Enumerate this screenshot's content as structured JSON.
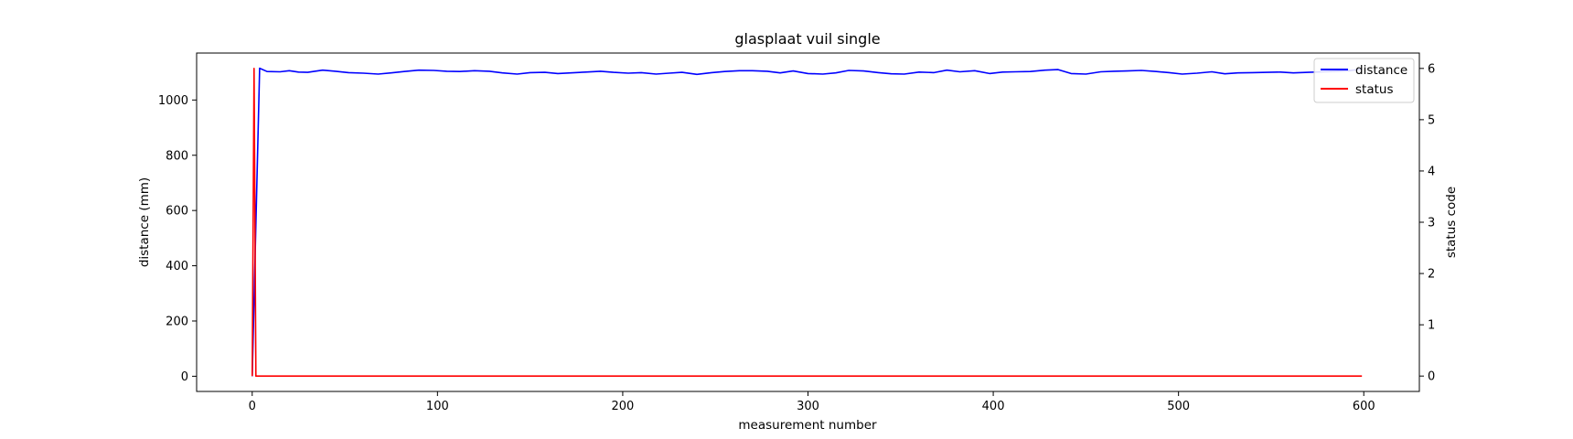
{
  "chart_data": {
    "type": "line",
    "title": "glasplaat vuil single",
    "xlabel": "measurement number",
    "ylabel_left": "distance (mm)",
    "ylabel_right": "status code",
    "xlim": [
      -30,
      630
    ],
    "ylim_left": [
      -55,
      1170
    ],
    "ylim_right": [
      -0.3,
      6.3
    ],
    "xticks": [
      0,
      100,
      200,
      300,
      400,
      500,
      600
    ],
    "yticks_left": [
      0,
      200,
      400,
      600,
      800,
      1000
    ],
    "yticks_right": [
      0,
      1,
      2,
      3,
      4,
      5,
      6
    ],
    "grid": false,
    "legend": {
      "position": "top-right",
      "entries": [
        "distance",
        "status"
      ]
    },
    "series": [
      {
        "name": "distance",
        "axis": "left",
        "color": "#0000ff",
        "x": [
          0,
          4,
          8,
          15,
          20,
          25,
          30,
          38,
          45,
          52,
          60,
          68,
          75,
          82,
          90,
          98,
          105,
          112,
          120,
          128,
          135,
          143,
          150,
          158,
          165,
          172,
          180,
          188,
          195,
          203,
          210,
          218,
          225,
          232,
          240,
          248,
          255,
          263,
          270,
          278,
          285,
          292,
          300,
          308,
          315,
          322,
          330,
          338,
          345,
          352,
          360,
          368,
          375,
          382,
          390,
          398,
          405,
          412,
          420,
          428,
          435,
          442,
          450,
          458,
          465,
          472,
          480,
          488,
          495,
          502,
          510,
          518,
          525,
          532,
          540,
          548,
          555,
          562,
          570,
          578,
          585,
          592,
          599
        ],
        "y": [
          0,
          1115,
          1103,
          1102,
          1106,
          1101,
          1100,
          1108,
          1104,
          1099,
          1097,
          1094,
          1098,
          1103,
          1108,
          1107,
          1104,
          1103,
          1106,
          1104,
          1098,
          1094,
          1099,
          1100,
          1096,
          1098,
          1101,
          1104,
          1100,
          1097,
          1099,
          1094,
          1097,
          1100,
          1093,
          1099,
          1103,
          1106,
          1106,
          1104,
          1098,
          1105,
          1096,
          1094,
          1098,
          1107,
          1105,
          1099,
          1095,
          1094,
          1101,
          1099,
          1108,
          1102,
          1106,
          1096,
          1101,
          1102,
          1103,
          1108,
          1110,
          1096,
          1094,
          1102,
          1104,
          1105,
          1107,
          1103,
          1099,
          1094,
          1097,
          1102,
          1095,
          1098,
          1099,
          1100,
          1101,
          1098,
          1100,
          1102,
          1104,
          1106,
          1112
        ]
      },
      {
        "name": "status",
        "axis": "right",
        "color": "#ff0000",
        "x": [
          0,
          1,
          2,
          599
        ],
        "y": [
          0,
          6,
          0,
          0
        ]
      }
    ]
  }
}
